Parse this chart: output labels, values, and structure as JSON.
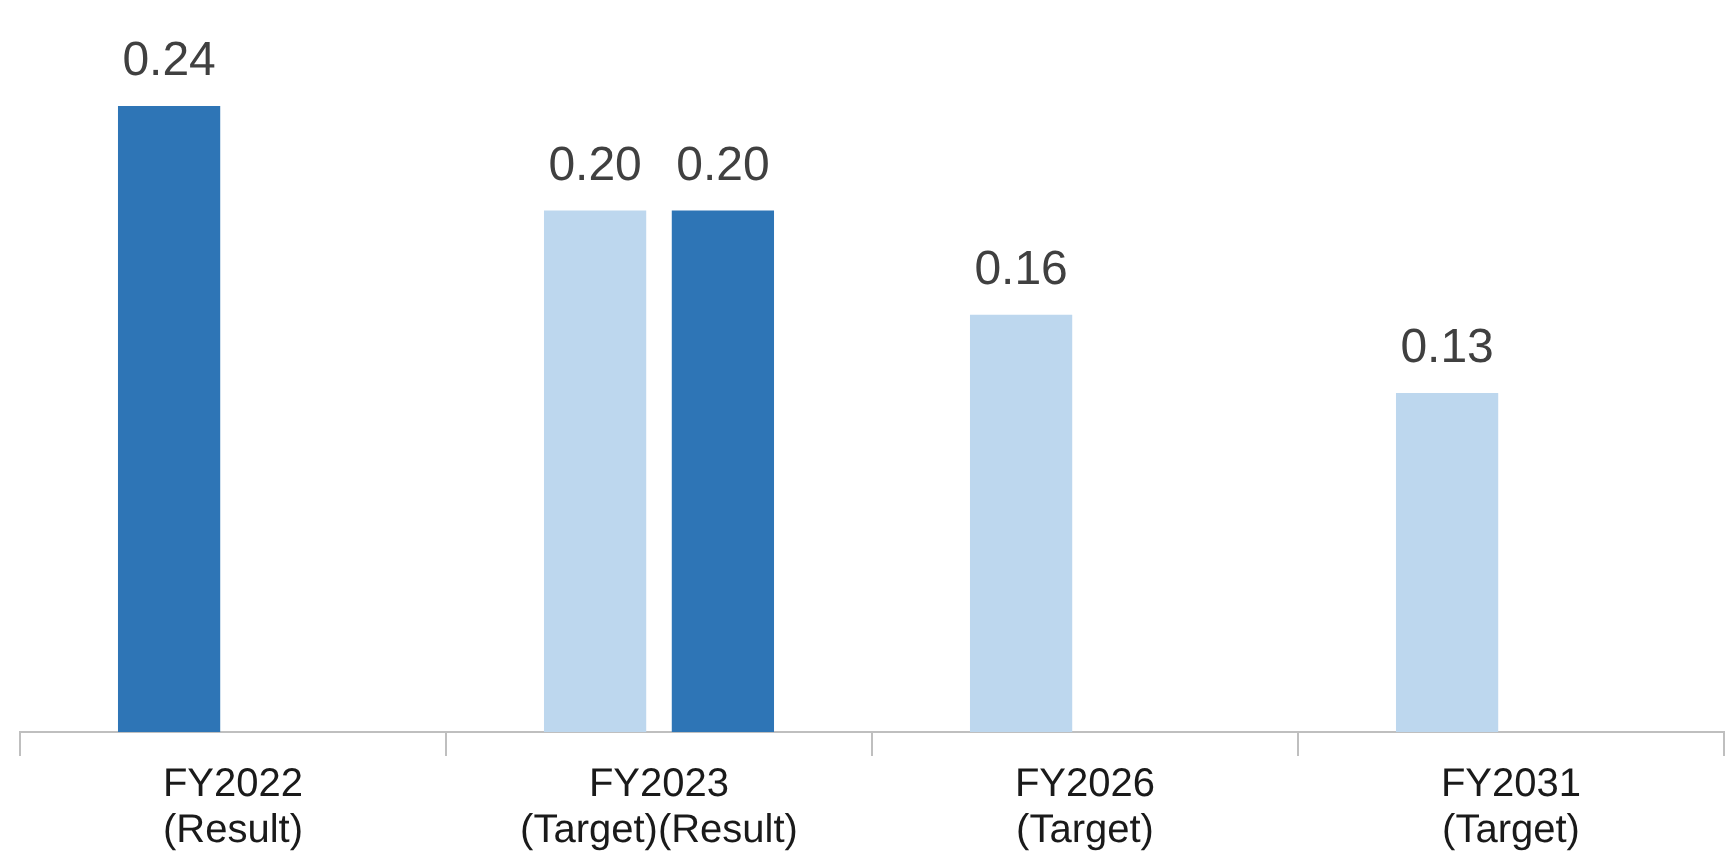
{
  "chart_data": {
    "type": "bar",
    "categories": [
      "FY2022\n(Result)",
      "FY2023\n(Target)(Result)",
      "FY2026\n(Target)",
      "FY2031\n(Target)"
    ],
    "series": [
      {
        "colors": [
          "#2e75b6",
          "#bdd7ee",
          "#bdd7ee",
          "#bdd7ee"
        ],
        "values": [
          0.24,
          0.2,
          0.16,
          0.13
        ],
        "value_labels": [
          "0.24",
          "0.20",
          "0.16",
          "0.13"
        ]
      },
      {
        "color": "#2e75b6",
        "values": [
          null,
          0.2,
          null,
          null
        ],
        "value_labels": [
          null,
          "0.20",
          null,
          null
        ]
      }
    ],
    "grid": false,
    "legend": false,
    "tick_labels": "x"
  }
}
